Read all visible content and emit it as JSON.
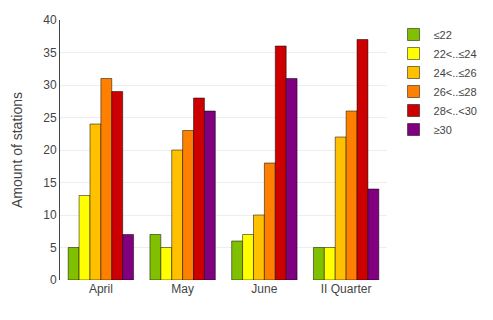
{
  "chart_data": {
    "type": "bar",
    "categories": [
      "April",
      "May",
      "June",
      "II Quarter"
    ],
    "series": [
      {
        "name": "≤22",
        "color": "#80c000",
        "values": [
          5,
          7,
          6,
          5
        ]
      },
      {
        "name": "22<..≤24",
        "color": "#ffff00",
        "values": [
          13,
          5,
          7,
          5
        ]
      },
      {
        "name": "24<..≤26",
        "color": "#ffc000",
        "values": [
          24,
          20,
          10,
          22
        ]
      },
      {
        "name": "26<..≤28",
        "color": "#ff8000",
        "values": [
          31,
          23,
          18,
          26
        ]
      },
      {
        "name": "28<..<30",
        "color": "#cc0000",
        "values": [
          29,
          28,
          36,
          37
        ]
      },
      {
        "name": "≥30",
        "color": "#800080",
        "values": [
          7,
          26,
          31,
          14
        ]
      }
    ],
    "ylabel": "Amount of stations",
    "ylim": [
      0,
      40
    ],
    "yticks": [
      0,
      5,
      10,
      15,
      20,
      25,
      30,
      35,
      40
    ],
    "grid": true,
    "legend": "upper right"
  }
}
